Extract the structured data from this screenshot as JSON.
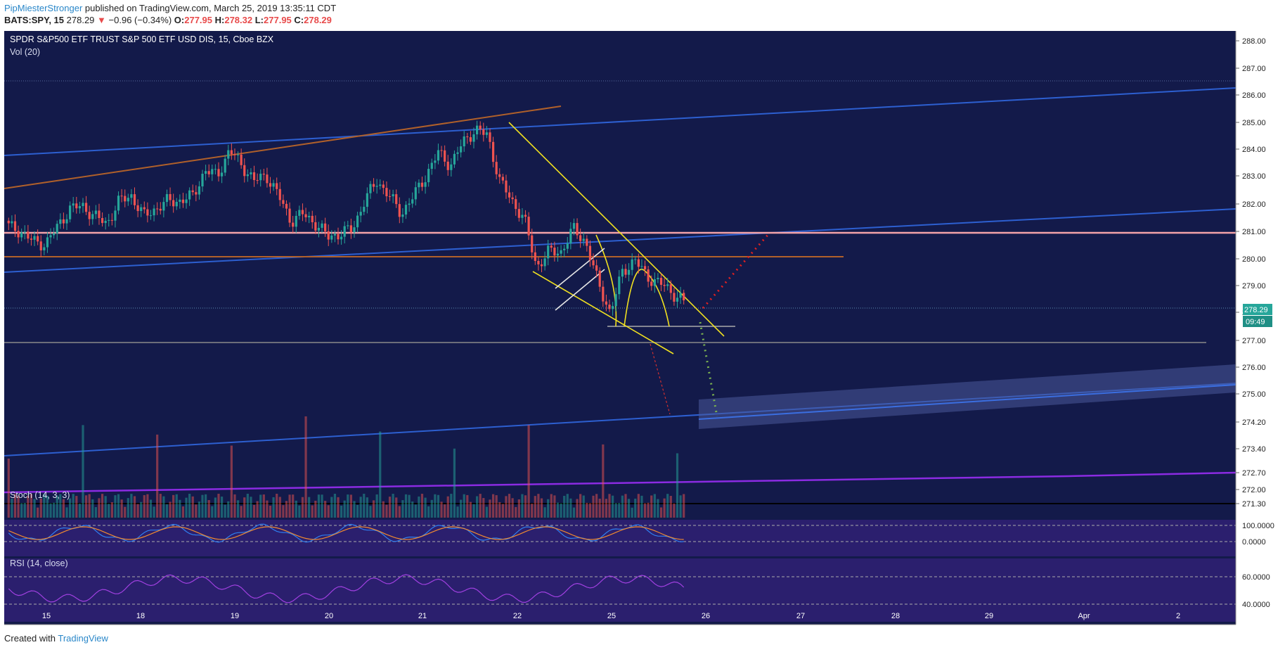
{
  "header": {
    "author": "PipMiesterStronger",
    "published_text": "published on TradingView.com, March 25, 2019 13:35:11 CDT",
    "symbol_tf": "BATS:SPY, 15",
    "last": "278.29",
    "change_arrow": "▼",
    "change": "−0.96 (−0.34%)",
    "o_label": "O:",
    "o": "277.95",
    "h_label": "H:",
    "h": "278.32",
    "l_label": "L:",
    "l": "277.95",
    "c_label": "C:",
    "c": "278.29"
  },
  "footer": {
    "created_with": "Created with",
    "brand": "TradingView"
  },
  "colors": {
    "chart_bg": "#131a4a",
    "up": "#26a69a",
    "down": "#ef5350",
    "axis_text": "#222222",
    "price_tag": "#26a69a",
    "indicator_band": "#2b1f6e"
  },
  "chart_data": {
    "type": "candlestick",
    "title": "SPDR S&P500 ETF TRUST S&P 500 ETF USD DIS, 15, Cboe BZX",
    "volume_label": "Vol (20)",
    "ylim": [
      270.9,
      288.5
    ],
    "y_ticks": [
      "288.00",
      "287.00",
      "286.00",
      "285.00",
      "284.00",
      "283.00",
      "282.00",
      "281.00",
      "280.00",
      "279.00",
      "278.00",
      "277.00",
      "276.00",
      "275.00",
      "274.20",
      "273.40",
      "272.70",
      "272.00",
      "271.30"
    ],
    "x_ticks": [
      "15",
      "18",
      "19",
      "20",
      "21",
      "22",
      "25",
      "26",
      "27",
      "28",
      "29",
      "Apr",
      "2"
    ],
    "current_price": "278.29",
    "countdown": "09:49",
    "close_path": [
      {
        "d": "14",
        "v": 281.2
      },
      {
        "d": "14",
        "v": 281.0
      },
      {
        "d": "15",
        "v": 280.6
      },
      {
        "d": "15",
        "v": 280.5
      },
      {
        "d": "15",
        "v": 281.2
      },
      {
        "d": "15",
        "v": 281.9
      },
      {
        "d": "15",
        "v": 282.0
      },
      {
        "d": "18",
        "v": 281.6
      },
      {
        "d": "18",
        "v": 281.3
      },
      {
        "d": "18",
        "v": 282.2
      },
      {
        "d": "18",
        "v": 282.4
      },
      {
        "d": "18",
        "v": 281.6
      },
      {
        "d": "18",
        "v": 281.9
      },
      {
        "d": "18",
        "v": 282.2
      },
      {
        "d": "18",
        "v": 282.2
      },
      {
        "d": "19",
        "v": 282.4
      },
      {
        "d": "19",
        "v": 283.4
      },
      {
        "d": "19",
        "v": 283.2
      },
      {
        "d": "19",
        "v": 284.2
      },
      {
        "d": "19",
        "v": 283.6
      },
      {
        "d": "19",
        "v": 283.0
      },
      {
        "d": "19",
        "v": 283.2
      },
      {
        "d": "20",
        "v": 282.4
      },
      {
        "d": "20",
        "v": 281.4
      },
      {
        "d": "20",
        "v": 281.7
      },
      {
        "d": "20",
        "v": 281.3
      },
      {
        "d": "20",
        "v": 280.8
      },
      {
        "d": "20",
        "v": 280.9
      },
      {
        "d": "20",
        "v": 281.1
      },
      {
        "d": "21",
        "v": 282.2
      },
      {
        "d": "21",
        "v": 283.0
      },
      {
        "d": "21",
        "v": 282.4
      },
      {
        "d": "21",
        "v": 281.7
      },
      {
        "d": "21",
        "v": 282.4
      },
      {
        "d": "21",
        "v": 283.2
      },
      {
        "d": "21",
        "v": 284.1
      },
      {
        "d": "21",
        "v": 283.6
      },
      {
        "d": "21",
        "v": 284.5
      },
      {
        "d": "21",
        "v": 285.0
      },
      {
        "d": "22",
        "v": 284.8
      },
      {
        "d": "22",
        "v": 283.0
      },
      {
        "d": "22",
        "v": 282.2
      },
      {
        "d": "22",
        "v": 281.5
      },
      {
        "d": "22",
        "v": 279.6
      },
      {
        "d": "22",
        "v": 280.2
      },
      {
        "d": "22",
        "v": 280.2
      },
      {
        "d": "22",
        "v": 281.1
      },
      {
        "d": "22",
        "v": 280.6
      },
      {
        "d": "25",
        "v": 279.0
      },
      {
        "d": "25",
        "v": 277.8
      },
      {
        "d": "25",
        "v": 279.4
      },
      {
        "d": "25",
        "v": 279.9
      },
      {
        "d": "25",
        "v": 279.2
      },
      {
        "d": "25",
        "v": 279.0
      },
      {
        "d": "25",
        "v": 278.6
      },
      {
        "d": "25",
        "v": 278.29
      }
    ],
    "annotations": {
      "drawn_levels": [
        "281.2",
        "280.3",
        "277.8",
        "277.2"
      ],
      "projection_red_target": "281.2",
      "projection_green_target": "274.5"
    },
    "indicators": [
      {
        "name": "Stoch (14, 3, 3)",
        "ticks": [
          "100.0000",
          "0.0000"
        ]
      },
      {
        "name": "RSI (14, close)",
        "ticks": [
          "60.0000",
          "40.0000"
        ]
      }
    ]
  }
}
